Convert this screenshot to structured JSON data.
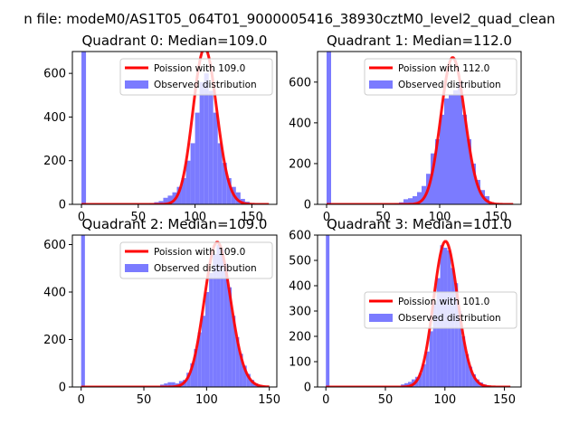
{
  "figure": {
    "suptitle": "n file: modeM0/AS1T05_064T01_9000005416_38930cztM0_level2_quad_clean"
  },
  "colors": {
    "hist": "#7b7bff",
    "poisson": "#ff0000",
    "axes": "#000000",
    "background": "#ffffff"
  },
  "chart_data": [
    {
      "type": "bar",
      "title": "Quadrant 0: Median=109.0",
      "xlim": [
        -8,
        172
      ],
      "ylim": [
        0,
        700
      ],
      "xticks": [
        0,
        50,
        100,
        150
      ],
      "yticks": [
        0,
        200,
        400,
        600
      ],
      "legend": {
        "placement": "upper-right",
        "entries": [
          "Poission with 109.0",
          "Observed distribution"
        ]
      },
      "hist": {
        "name": "Observed distribution",
        "bin_width": 4,
        "bins": [
          [
            0,
            700
          ],
          [
            60,
            5
          ],
          [
            64,
            10
          ],
          [
            68,
            15
          ],
          [
            72,
            30
          ],
          [
            76,
            40
          ],
          [
            80,
            55
          ],
          [
            84,
            80
          ],
          [
            88,
            120
          ],
          [
            92,
            200
          ],
          [
            96,
            280
          ],
          [
            100,
            420
          ],
          [
            104,
            560
          ],
          [
            108,
            600
          ],
          [
            112,
            520
          ],
          [
            116,
            420
          ],
          [
            120,
            280
          ],
          [
            124,
            190
          ],
          [
            128,
            120
          ],
          [
            132,
            80
          ],
          [
            136,
            55
          ],
          [
            140,
            25
          ],
          [
            144,
            12
          ],
          [
            148,
            5
          ]
        ]
      },
      "poisson": {
        "name": "Poission with 109.0",
        "lambda": 109.0,
        "x_range": [
          0,
          165
        ],
        "peak": 715
      }
    },
    {
      "type": "bar",
      "title": "Quadrant 1: Median=112.0",
      "xlim": [
        -8,
        172
      ],
      "ylim": [
        0,
        750
      ],
      "xticks": [
        0,
        50,
        100,
        150
      ],
      "yticks": [
        0,
        200,
        400,
        600
      ],
      "legend": {
        "placement": "upper-right",
        "entries": [
          "Poission with 112.0",
          "Observed distribution"
        ]
      },
      "hist": {
        "name": "Observed distribution",
        "bin_width": 4,
        "bins": [
          [
            0,
            750
          ],
          [
            60,
            5
          ],
          [
            64,
            10
          ],
          [
            68,
            25
          ],
          [
            72,
            30
          ],
          [
            76,
            40
          ],
          [
            80,
            60
          ],
          [
            84,
            90
          ],
          [
            88,
            150
          ],
          [
            92,
            250
          ],
          [
            96,
            320
          ],
          [
            100,
            440
          ],
          [
            104,
            520
          ],
          [
            108,
            540
          ],
          [
            112,
            560
          ],
          [
            116,
            600
          ],
          [
            120,
            440
          ],
          [
            124,
            320
          ],
          [
            128,
            200
          ],
          [
            132,
            120
          ],
          [
            136,
            70
          ],
          [
            140,
            40
          ],
          [
            144,
            10
          ],
          [
            148,
            5
          ]
        ]
      },
      "poisson": {
        "name": "Poission with 112.0",
        "lambda": 112.0,
        "x_range": [
          0,
          165
        ],
        "peak": 720
      }
    },
    {
      "type": "bar",
      "title": "Quadrant 2: Median=109.0",
      "xlim": [
        -7,
        156
      ],
      "ylim": [
        0,
        640
      ],
      "xticks": [
        0,
        50,
        100,
        150
      ],
      "yticks": [
        0,
        200,
        400,
        600
      ],
      "legend": {
        "placement": "upper-right",
        "entries": [
          "Poission with 109.0",
          "Observed distribution"
        ]
      },
      "hist": {
        "name": "Observed distribution",
        "bin_width": 3,
        "bins": [
          [
            0,
            640
          ],
          [
            63,
            10
          ],
          [
            66,
            15
          ],
          [
            69,
            20
          ],
          [
            72,
            20
          ],
          [
            75,
            15
          ],
          [
            78,
            25
          ],
          [
            81,
            30
          ],
          [
            84,
            60
          ],
          [
            87,
            100
          ],
          [
            90,
            160
          ],
          [
            93,
            230
          ],
          [
            96,
            300
          ],
          [
            99,
            400
          ],
          [
            102,
            480
          ],
          [
            105,
            560
          ],
          [
            108,
            600
          ],
          [
            111,
            580
          ],
          [
            114,
            520
          ],
          [
            117,
            420
          ],
          [
            120,
            300
          ],
          [
            123,
            210
          ],
          [
            126,
            140
          ],
          [
            129,
            90
          ],
          [
            132,
            55
          ],
          [
            135,
            30
          ],
          [
            138,
            15
          ],
          [
            141,
            8
          ],
          [
            144,
            4
          ]
        ]
      },
      "poisson": {
        "name": "Poission with 109.0",
        "lambda": 109.0,
        "x_range": [
          0,
          150
        ],
        "peak": 610
      }
    },
    {
      "type": "bar",
      "title": "Quadrant 3: Median=101.0",
      "xlim": [
        -7,
        164
      ],
      "ylim": [
        0,
        600
      ],
      "xticks": [
        0,
        50,
        100,
        150
      ],
      "yticks": [
        0,
        100,
        200,
        300,
        400,
        500,
        600
      ],
      "legend": {
        "placement": "center-right",
        "entries": [
          "Poission with 101.0",
          "Observed distribution"
        ]
      },
      "hist": {
        "name": "Observed distribution",
        "bin_width": 3,
        "bins": [
          [
            0,
            600
          ],
          [
            63,
            10
          ],
          [
            66,
            15
          ],
          [
            69,
            20
          ],
          [
            72,
            30
          ],
          [
            75,
            40
          ],
          [
            78,
            55
          ],
          [
            81,
            90
          ],
          [
            84,
            140
          ],
          [
            87,
            220
          ],
          [
            90,
            330
          ],
          [
            93,
            430
          ],
          [
            96,
            560
          ],
          [
            99,
            550
          ],
          [
            102,
            540
          ],
          [
            105,
            470
          ],
          [
            108,
            410
          ],
          [
            111,
            300
          ],
          [
            114,
            200
          ],
          [
            117,
            130
          ],
          [
            120,
            80
          ],
          [
            123,
            50
          ],
          [
            126,
            30
          ],
          [
            129,
            18
          ],
          [
            132,
            10
          ],
          [
            135,
            5
          ]
        ]
      },
      "poisson": {
        "name": "Poission with 101.0",
        "lambda": 101.0,
        "x_range": [
          0,
          155
        ],
        "peak": 575
      }
    }
  ]
}
